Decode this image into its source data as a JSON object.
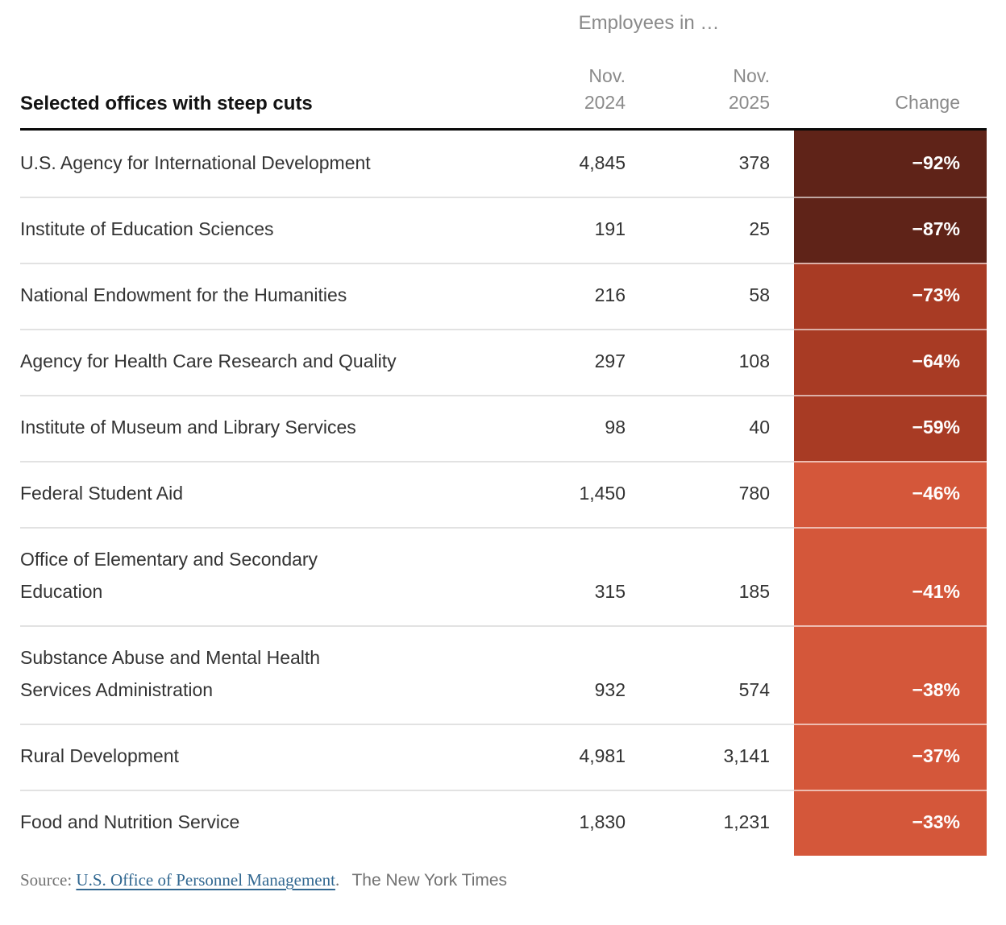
{
  "colors": {
    "dark_red": "#5f2318",
    "mid_red": "#a83b24",
    "light_red": "#d4573a",
    "header_gray": "#8a8a8a",
    "text_dark": "#333333",
    "title_black": "#121212",
    "link_blue": "#326891",
    "source_gray": "#727272"
  },
  "header": {
    "group_label": "Employees in …",
    "title": "Selected offices with steep cuts",
    "col_2024": [
      "Nov.",
      "2024"
    ],
    "col_2025": [
      "Nov.",
      "2025"
    ],
    "col_change": "Change"
  },
  "chart_data": {
    "type": "table",
    "title": "Selected offices with steep cuts",
    "group_header": "Employees in …",
    "columns": [
      "Nov. 2024",
      "Nov. 2025",
      "Change"
    ],
    "rows": [
      {
        "office": "U.S. Agency for International Development",
        "office_display": "U.S. Agency for International Development",
        "nov_2024": "4,845",
        "nov_2025": "378",
        "change": "−92%",
        "change_value": -92,
        "cell_color": "#5f2318"
      },
      {
        "office": "Institute of Education Sciences",
        "office_display": "Institute of Education Sciences",
        "nov_2024": "191",
        "nov_2025": "25",
        "change": "−87%",
        "change_value": -87,
        "cell_color": "#5f2318"
      },
      {
        "office": "National Endowment for the Humanities",
        "office_display": "National Endowment for the Humanities",
        "nov_2024": "216",
        "nov_2025": "58",
        "change": "−73%",
        "change_value": -73,
        "cell_color": "#a83b24"
      },
      {
        "office": "Agency for Health Care Research and Quality",
        "office_display": "Agency for Health Care Research and Quality",
        "nov_2024": "297",
        "nov_2025": "108",
        "change": "−64%",
        "change_value": -64,
        "cell_color": "#a83b24"
      },
      {
        "office": "Institute of Museum and Library Services",
        "office_display": "Institute of Museum and Library Services",
        "nov_2024": "98",
        "nov_2025": "40",
        "change": "−59%",
        "change_value": -59,
        "cell_color": "#a83b24"
      },
      {
        "office": "Federal Student Aid",
        "office_display": "Federal Student Aid",
        "nov_2024": "1,450",
        "nov_2025": "780",
        "change": "−46%",
        "change_value": -46,
        "cell_color": "#d4573a"
      },
      {
        "office": "Office of Elementary and Secondary Education",
        "office_display": [
          "Office of Elementary and Secondary",
          "Education"
        ],
        "nov_2024": "315",
        "nov_2025": "185",
        "change": "−41%",
        "change_value": -41,
        "cell_color": "#d4573a"
      },
      {
        "office": "Substance Abuse and Mental Health Services Administration",
        "office_display": [
          "Substance Abuse and Mental Health",
          "Services Administration"
        ],
        "nov_2024": "932",
        "nov_2025": "574",
        "change": "−38%",
        "change_value": -38,
        "cell_color": "#d4573a"
      },
      {
        "office": "Rural Development",
        "office_display": "Rural Development",
        "nov_2024": "4,981",
        "nov_2025": "3,141",
        "change": "−37%",
        "change_value": -37,
        "cell_color": "#d4573a"
      },
      {
        "office": "Food and Nutrition Service",
        "office_display": "Food and Nutrition Service",
        "nov_2024": "1,830",
        "nov_2025": "1,231",
        "change": "−33%",
        "change_value": -33,
        "cell_color": "#d4573a"
      }
    ]
  },
  "source": {
    "prefix": "Source:",
    "link_label": "U.S. Office of Personnel Management",
    "period": ".",
    "credit": "The New York Times"
  }
}
